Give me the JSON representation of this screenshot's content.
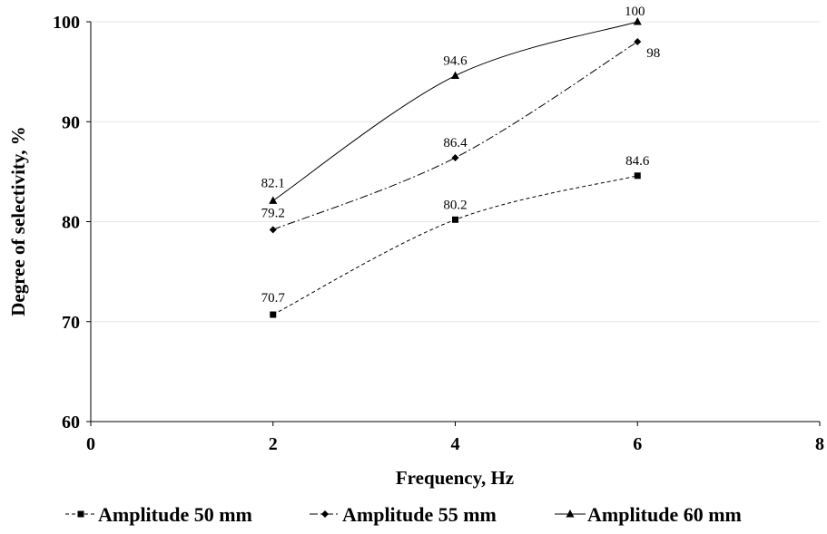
{
  "chart_data": {
    "type": "line",
    "title": "",
    "xlabel": "Frequency, Hz",
    "ylabel": "Degree of selectivity, %",
    "xlim": [
      0,
      8
    ],
    "ylim": [
      60,
      100
    ],
    "x_ticks": [
      "0",
      "2",
      "4",
      "6",
      "8"
    ],
    "y_ticks": [
      "60",
      "70",
      "80",
      "90",
      "100"
    ],
    "grid": "horizontal",
    "legend_position": "bottom",
    "series": [
      {
        "name": "Amplitude 50 mm",
        "marker": "square",
        "line_style": "dashed",
        "x": [
          2,
          4,
          6
        ],
        "y": [
          70.7,
          80.2,
          84.6
        ],
        "labels": [
          "70.7",
          "80.2",
          "84.6"
        ]
      },
      {
        "name": "Amplitude 55 mm",
        "marker": "diamond",
        "line_style": "dash-dot",
        "x": [
          2,
          4,
          6
        ],
        "y": [
          79.2,
          86.4,
          98
        ],
        "labels": [
          "79.2",
          "86.4",
          "98"
        ]
      },
      {
        "name": "Amplitude 60 mm",
        "marker": "triangle",
        "line_style": "solid",
        "x": [
          2,
          4,
          6
        ],
        "y": [
          82.1,
          94.6,
          100
        ],
        "labels": [
          "82.1",
          "94.6",
          "100"
        ]
      }
    ]
  }
}
